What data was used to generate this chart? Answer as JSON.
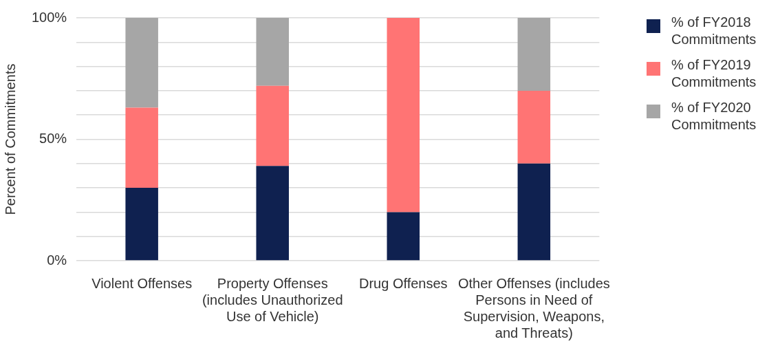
{
  "chart_data": {
    "type": "bar",
    "stacked": true,
    "ylabel": "Percent of Commitments",
    "categories": [
      "Violent Offenses",
      "Property Offenses (includes Unauthorized Use of Vehicle)",
      "Drug Offenses",
      "Other Offenses (includes Persons in Need of Supervision, Weapons, and Threats)"
    ],
    "series": [
      {
        "name": "% of FY2018 Commitments",
        "color": "#0f2150",
        "values": [
          30,
          39,
          20,
          40
        ]
      },
      {
        "name": "% of FY2019 Commitments",
        "color": "#ff7474",
        "values": [
          33,
          33,
          80,
          30
        ]
      },
      {
        "name": "% of FY2020 Commitments",
        "color": "#a6a6a6",
        "values": [
          37,
          28,
          0,
          30
        ]
      }
    ],
    "ylim": [
      0,
      100
    ],
    "yticks": [
      {
        "value": 0,
        "label": "0%"
      },
      {
        "value": 10,
        "label": null
      },
      {
        "value": 20,
        "label": null
      },
      {
        "value": 30,
        "label": null
      },
      {
        "value": 40,
        "label": null
      },
      {
        "value": 50,
        "label": "50%"
      },
      {
        "value": 60,
        "label": null
      },
      {
        "value": 70,
        "label": null
      },
      {
        "value": 80,
        "label": null
      },
      {
        "value": 90,
        "label": null
      },
      {
        "value": 100,
        "label": "100%"
      }
    ],
    "grid": "y",
    "legend": "right"
  }
}
